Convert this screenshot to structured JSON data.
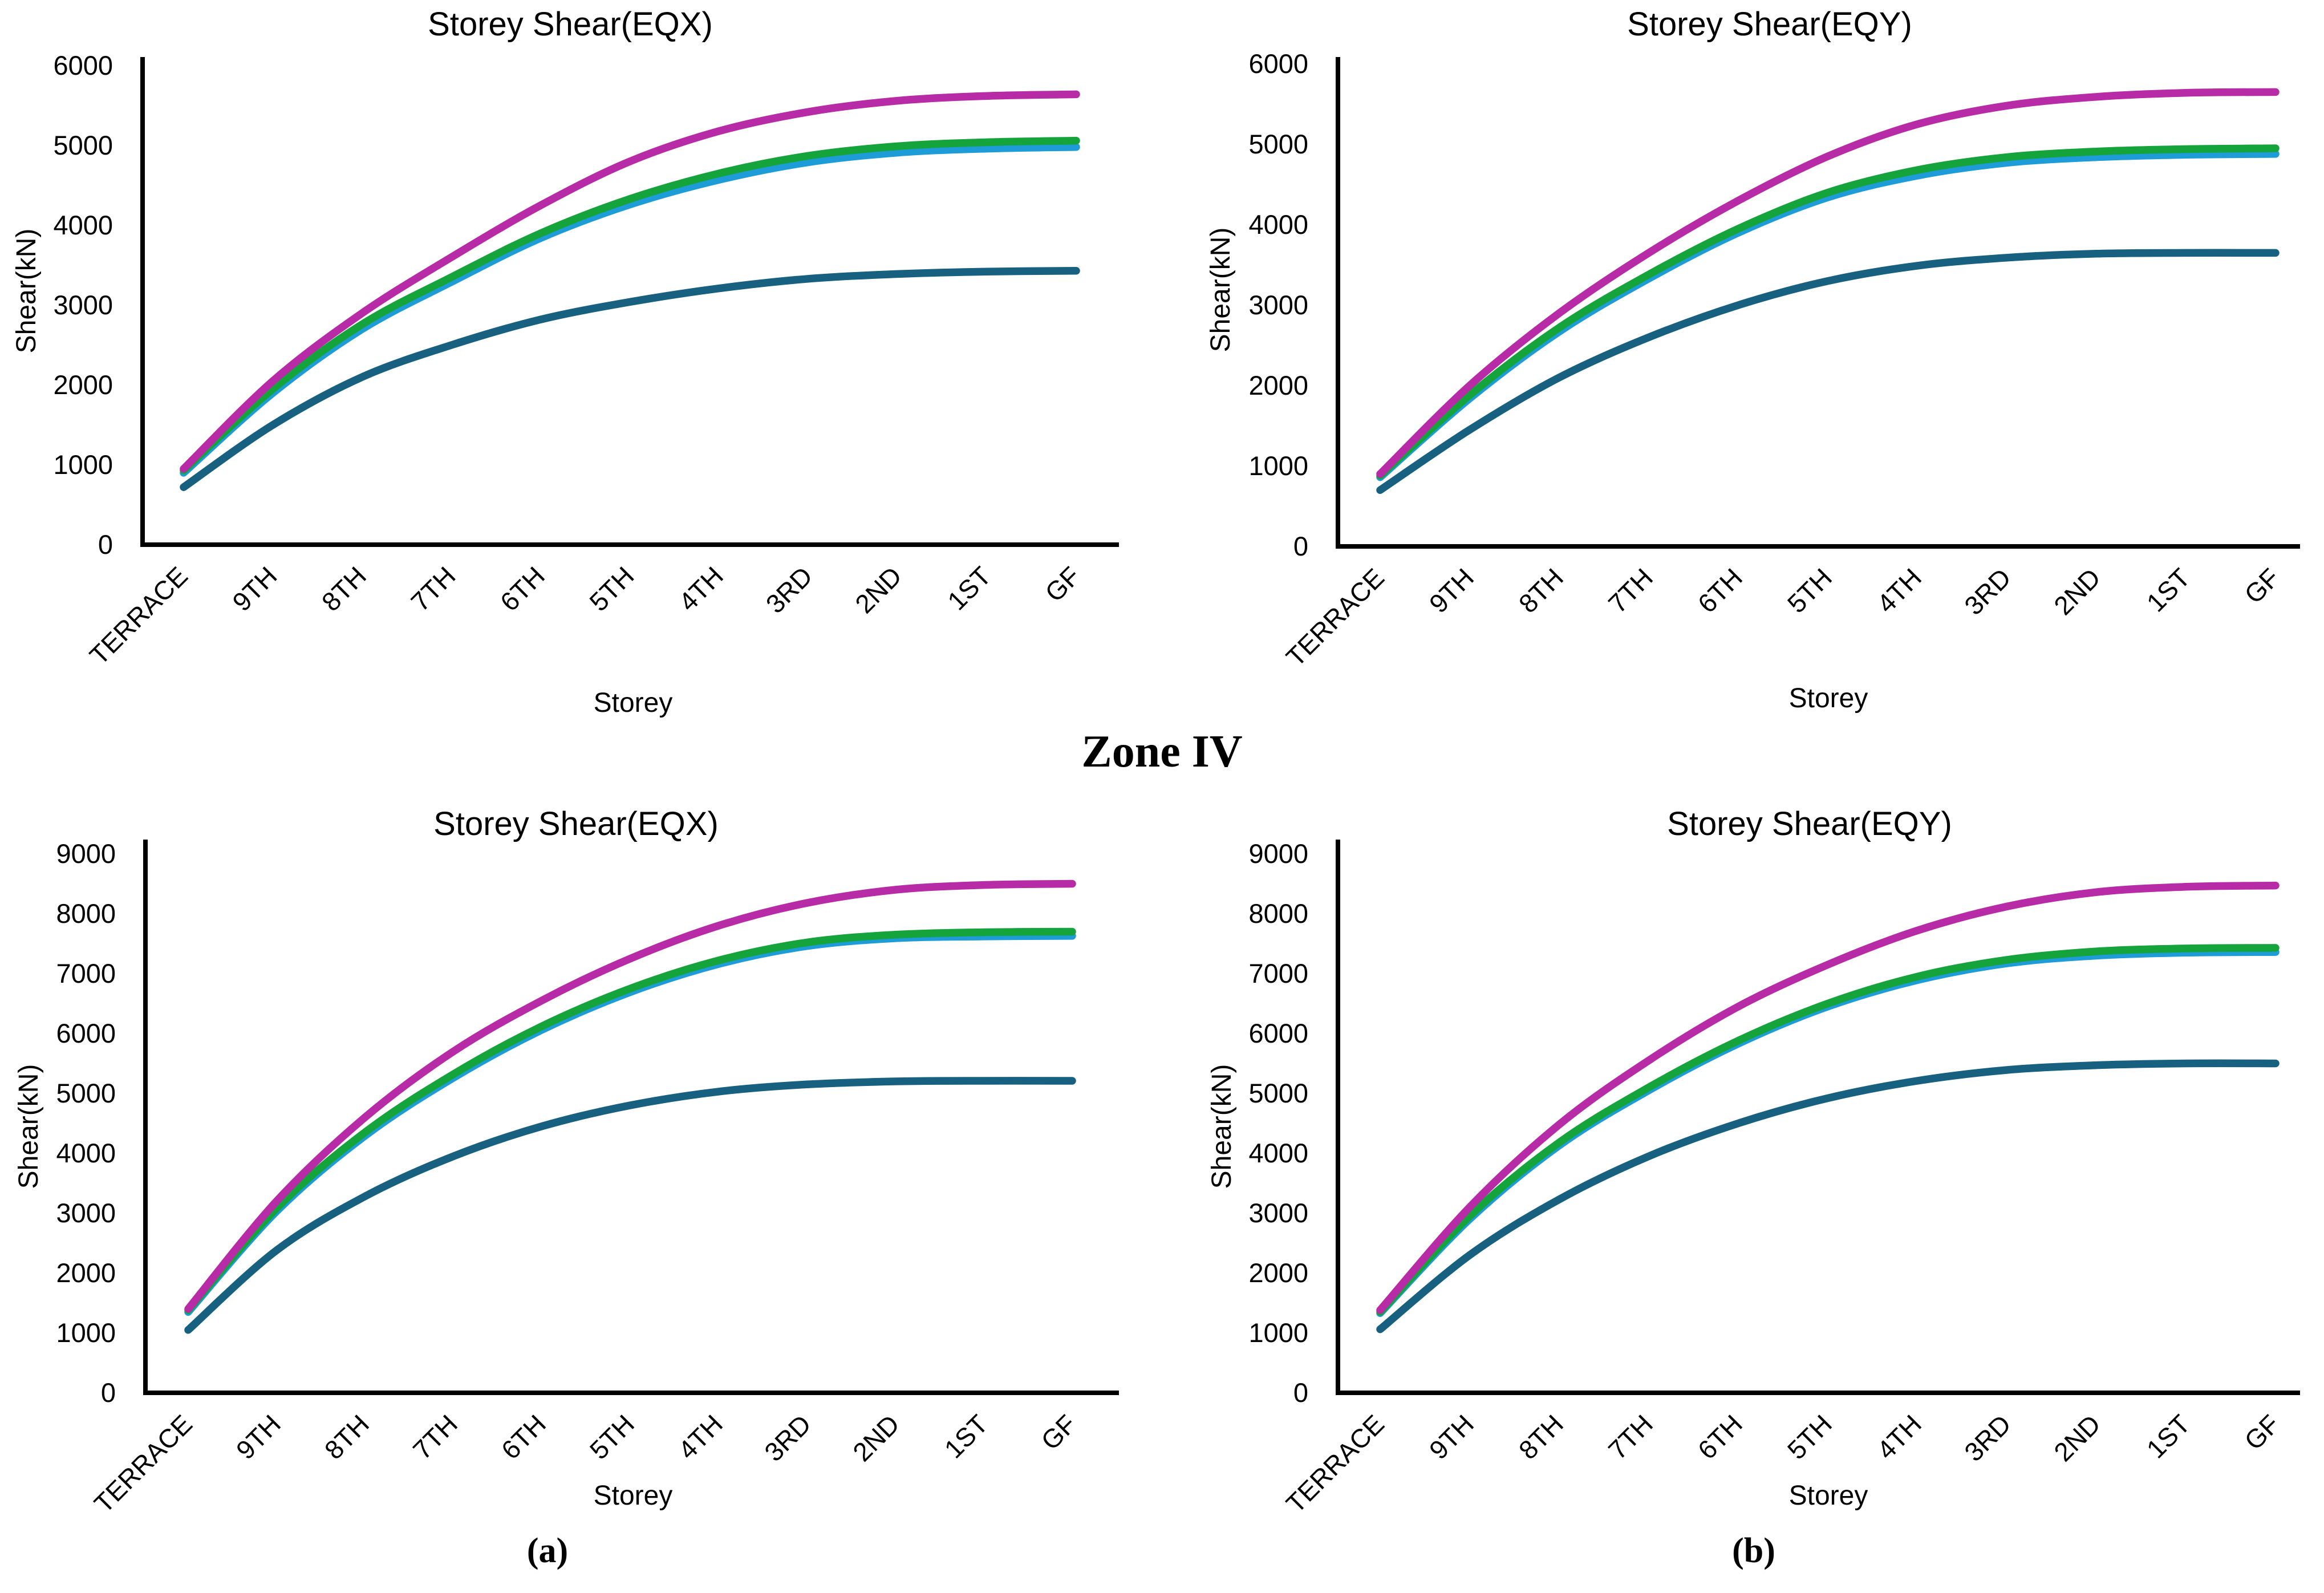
{
  "page": {
    "zone_label": "Zone IV",
    "caption_a": "(a)",
    "caption_b": "(b)"
  },
  "chart_data": [
    {
      "id": "eqx_top",
      "type": "line",
      "title": "Storey Shear(EQX)",
      "xlabel": "Storey",
      "ylabel": "Shear(kN)",
      "ylim": [
        0,
        6000
      ],
      "ytick_step": 1000,
      "grid": false,
      "legend_position": "none",
      "categories": [
        "TERRACE",
        "9TH",
        "8TH",
        "7TH",
        "6TH",
        "5TH",
        "4TH",
        "3RD",
        "2ND",
        "1ST",
        "GF"
      ],
      "series": [
        {
          "name": "series-magenta",
          "color": "#B72BA6",
          "values": [
            950,
            2050,
            2900,
            3600,
            4250,
            4800,
            5180,
            5420,
            5560,
            5620,
            5640
          ]
        },
        {
          "name": "series-green",
          "color": "#15A33C",
          "values": [
            930,
            1950,
            2760,
            3350,
            3900,
            4330,
            4650,
            4870,
            4990,
            5040,
            5060
          ]
        },
        {
          "name": "series-cyan",
          "color": "#1E9CD8",
          "values": [
            900,
            1900,
            2700,
            3290,
            3840,
            4260,
            4570,
            4790,
            4910,
            4960,
            4980
          ]
        },
        {
          "name": "series-teal",
          "color": "#17607F",
          "values": [
            720,
            1500,
            2100,
            2500,
            2820,
            3040,
            3210,
            3330,
            3390,
            3420,
            3430
          ]
        }
      ]
    },
    {
      "id": "eqy_top",
      "type": "line",
      "title": "Storey Shear(EQY)",
      "xlabel": "Storey",
      "ylabel": "Shear(kN)",
      "ylim": [
        0,
        6000
      ],
      "ytick_step": 1000,
      "grid": false,
      "legend_position": "none",
      "categories": [
        "TERRACE",
        "9TH",
        "8TH",
        "7TH",
        "6TH",
        "5TH",
        "4TH",
        "3RD",
        "2ND",
        "1ST",
        "GF"
      ],
      "series": [
        {
          "name": "series-magenta",
          "color": "#B72BA6",
          "values": [
            900,
            2000,
            2900,
            3650,
            4300,
            4850,
            5250,
            5480,
            5590,
            5640,
            5650
          ]
        },
        {
          "name": "series-green",
          "color": "#15A33C",
          "values": [
            880,
            1880,
            2720,
            3380,
            3950,
            4400,
            4680,
            4840,
            4910,
            4940,
            4950
          ]
        },
        {
          "name": "series-cyan",
          "color": "#1E9CD8",
          "values": [
            860,
            1840,
            2670,
            3330,
            3900,
            4340,
            4610,
            4770,
            4840,
            4870,
            4880
          ]
        },
        {
          "name": "series-teal",
          "color": "#17607F",
          "values": [
            700,
            1450,
            2100,
            2600,
            3000,
            3300,
            3490,
            3590,
            3640,
            3650,
            3650
          ]
        }
      ]
    },
    {
      "id": "eqx_bottom",
      "type": "line",
      "title": "Storey Shear(EQX)",
      "xlabel": "Storey",
      "ylabel": "Shear(kN)",
      "ylim": [
        0,
        9000
      ],
      "ytick_step": 1000,
      "grid": false,
      "legend_position": "none",
      "categories": [
        "TERRACE",
        "9TH",
        "8TH",
        "7TH",
        "6TH",
        "5TH",
        "4TH",
        "3RD",
        "2ND",
        "1ST",
        "GF"
      ],
      "series": [
        {
          "name": "series-magenta",
          "color": "#B72BA6",
          "values": [
            1400,
            3200,
            4600,
            5700,
            6550,
            7250,
            7800,
            8180,
            8400,
            8480,
            8500
          ]
        },
        {
          "name": "series-green",
          "color": "#15A33C",
          "values": [
            1380,
            3080,
            4350,
            5320,
            6120,
            6750,
            7220,
            7520,
            7650,
            7690,
            7700
          ]
        },
        {
          "name": "series-cyan",
          "color": "#1E9CD8",
          "values": [
            1350,
            3030,
            4290,
            5260,
            6060,
            6690,
            7160,
            7460,
            7590,
            7620,
            7630
          ]
        },
        {
          "name": "series-teal",
          "color": "#17607F",
          "values": [
            1050,
            2380,
            3280,
            3950,
            4450,
            4800,
            5030,
            5150,
            5200,
            5210,
            5210
          ]
        }
      ]
    },
    {
      "id": "eqy_bottom",
      "type": "line",
      "title": "Storey Shear(EQY)",
      "xlabel": "Storey",
      "ylabel": "Shear(kN)",
      "ylim": [
        0,
        9000
      ],
      "ytick_step": 1000,
      "grid": false,
      "legend_position": "none",
      "categories": [
        "TERRACE",
        "9TH",
        "8TH",
        "7TH",
        "6TH",
        "5TH",
        "4TH",
        "3RD",
        "2ND",
        "1ST",
        "GF"
      ],
      "series": [
        {
          "name": "series-magenta",
          "color": "#B72BA6",
          "values": [
            1380,
            3100,
            4480,
            5550,
            6450,
            7150,
            7720,
            8120,
            8360,
            8450,
            8470
          ]
        },
        {
          "name": "series-green",
          "color": "#15A33C",
          "values": [
            1350,
            2950,
            4180,
            5100,
            5880,
            6500,
            6950,
            7230,
            7370,
            7420,
            7430
          ]
        },
        {
          "name": "series-cyan",
          "color": "#1E9CD8",
          "values": [
            1330,
            2900,
            4130,
            5050,
            5830,
            6450,
            6890,
            7170,
            7300,
            7350,
            7360
          ]
        },
        {
          "name": "series-teal",
          "color": "#17607F",
          "values": [
            1060,
            2300,
            3230,
            3950,
            4500,
            4920,
            5210,
            5390,
            5470,
            5500,
            5500
          ]
        }
      ]
    }
  ]
}
